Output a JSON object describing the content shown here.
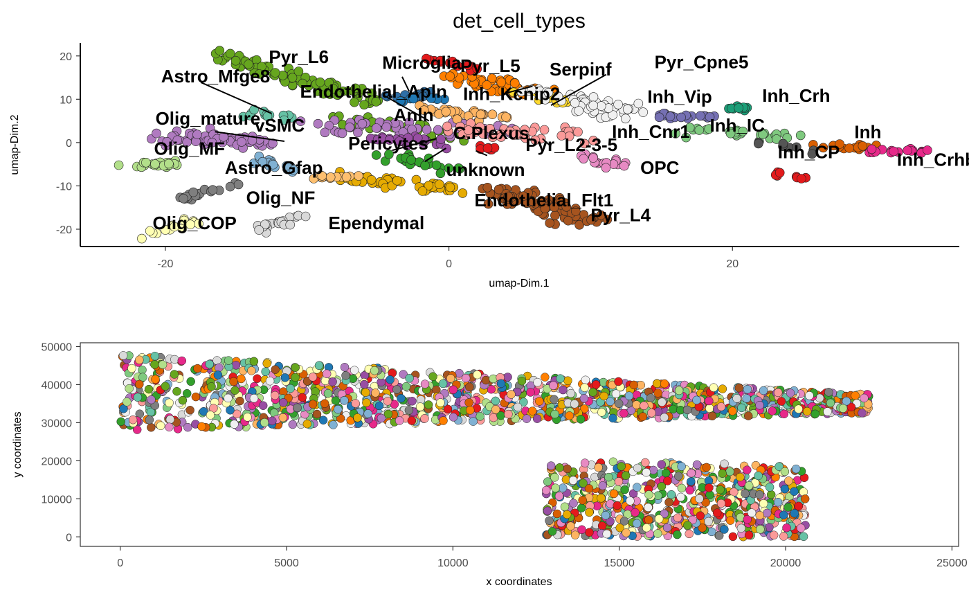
{
  "title": "det_cell_types",
  "colors": {
    "Pyr_L6": "#66a61e",
    "Astro_Mfge8": "#2f6fa6",
    "Endothelial_Apln": "#a6d854",
    "Olig_mature": "#b07ac0",
    "Olig_MF": "#b2df8a",
    "vSMC": "#66c2a5",
    "Astro_Gfap": "#80b1d3",
    "Olig_NF": "#7f7f7f",
    "Olig_COP": "#ffffb3",
    "Ependymal": "#d9d9d9",
    "Microglia": "#1f78b4",
    "Pyr_L5": "#ff7f00",
    "Serpinf": "#ffd92f",
    "Pyr_Cpne5": "#f0f0f0",
    "Inh_Kcnip2": "#fdb462",
    "Anln": "#984ea3",
    "C.Plexus": "#fb9a99",
    "Inh_Cnr1": "#e78ac3",
    "Pyr_L2-3-5": "#ef6f6f",
    "Pericytes": "#e6ab02",
    "unknown": "#33a02c",
    "Endothelial_Flt1": "#e6ab02",
    "Pyr_L4": "#a6541f",
    "OPC": "#e78ac3",
    "Inh_Vip": "#7570b3",
    "Inh_Crh": "#1b9e77",
    "Inh_IC": "#7fc97f",
    "Inh": "#d95f02",
    "Inh_CP": "#e31a1c",
    "Inh_Crhbp": "#e7298a",
    "pyr_red": "#e41a1c"
  },
  "chart_data": [
    {
      "type": "scatter",
      "title": "det_cell_types",
      "xlabel": "umap-Dim.1",
      "ylabel": "umap-Dim.2",
      "xlim": [
        -26,
        36
      ],
      "ylim": [
        -24,
        23
      ],
      "xticks": [
        -20,
        0,
        20
      ],
      "yticks": [
        -20,
        -10,
        0,
        10,
        20
      ],
      "grid": false,
      "clusters": [
        {
          "name": "Pyr_L6",
          "color": "#66a61e",
          "x": [
            -17,
            -5
          ],
          "y": [
            21,
            9
          ],
          "spread": 1.2,
          "n": 90
        },
        {
          "name": "Pyr_L6",
          "color": "#66a61e",
          "x": [
            -8,
            1
          ],
          "y": [
            6,
            1
          ],
          "spread": 1.2,
          "n": 30
        },
        {
          "name": "Astro_Mfge8",
          "color": "#2f6fa6",
          "x": [
            -5,
            -1
          ],
          "y": [
            11,
            11
          ],
          "spread": 0.8,
          "n": 15
        },
        {
          "name": "vSMC",
          "color": "#66c2a5",
          "x": [
            -14,
            -11
          ],
          "y": [
            7,
            6
          ],
          "spread": 0.7,
          "n": 14
        },
        {
          "name": "Olig_mature",
          "color": "#b07ac0",
          "x": [
            -20,
            -13
          ],
          "y": [
            1,
            0
          ],
          "spread": 1.2,
          "n": 60
        },
        {
          "name": "Olig_mature",
          "color": "#b07ac0",
          "x": [
            -9,
            4
          ],
          "y": [
            4,
            3
          ],
          "spread": 1.5,
          "n": 50
        },
        {
          "name": "Olig_MF",
          "color": "#b2df8a",
          "x": [
            -23,
            -19
          ],
          "y": [
            -5,
            -5
          ],
          "spread": 0.6,
          "n": 22
        },
        {
          "name": "Astro_Gfap",
          "color": "#80b1d3",
          "x": [
            -14,
            -11
          ],
          "y": [
            -3,
            -6
          ],
          "spread": 0.8,
          "n": 18
        },
        {
          "name": "Olig_NF",
          "color": "#7f7f7f",
          "x": [
            -19,
            -15
          ],
          "y": [
            -13,
            -10
          ],
          "spread": 0.6,
          "n": 22
        },
        {
          "name": "Olig_COP",
          "color": "#ffffb3",
          "x": [
            -22,
            -18
          ],
          "y": [
            -22,
            -18
          ],
          "spread": 0.6,
          "n": 16
        },
        {
          "name": "Ependymal",
          "color": "#d9d9d9",
          "x": [
            -13,
            -11
          ],
          "y": [
            -20,
            -17
          ],
          "spread": 0.8,
          "n": 20
        },
        {
          "name": "Microglia",
          "color": "#1f78b4",
          "x": [
            -4,
            0
          ],
          "y": [
            10,
            10
          ],
          "spread": 0.7,
          "n": 10
        },
        {
          "name": "Pyr_L5",
          "color": "#ff7f00",
          "x": [
            0,
            6
          ],
          "y": [
            15,
            12
          ],
          "spread": 1.3,
          "n": 45
        },
        {
          "name": "Pyr_L5",
          "color": "#e41a1c",
          "x": [
            -1,
            2
          ],
          "y": [
            19,
            17
          ],
          "spread": 0.6,
          "n": 14
        },
        {
          "name": "Serpinf",
          "color": "#ffd92f",
          "x": [
            5,
            8
          ],
          "y": [
            12,
            9
          ],
          "spread": 0.8,
          "n": 14
        },
        {
          "name": "Pyr_Cpne5",
          "color": "#f0f0f0",
          "x": [
            6,
            12
          ],
          "y": [
            12,
            7
          ],
          "spread": 1.5,
          "n": 60
        },
        {
          "name": "Inh_Kcnip2",
          "color": "#fdb462",
          "x": [
            -2,
            4
          ],
          "y": [
            8,
            6
          ],
          "spread": 1.0,
          "n": 30
        },
        {
          "name": "C.Plexus",
          "color": "#fb9a99",
          "x": [
            0,
            9
          ],
          "y": [
            3,
            2
          ],
          "spread": 1.3,
          "n": 45
        },
        {
          "name": "Pyr_L2-3-5",
          "color": "#e31a1c",
          "x": [
            2,
            4
          ],
          "y": [
            -1,
            -2
          ],
          "spread": 0.6,
          "n": 8
        },
        {
          "name": "Inh_Cnr1",
          "color": "#e78ac3",
          "x": [
            9,
            12
          ],
          "y": [
            -3,
            -5
          ],
          "spread": 0.8,
          "n": 18
        },
        {
          "name": "Pericytes",
          "color": "#e6ab02",
          "x": [
            -8,
            0
          ],
          "y": [
            -8,
            -11
          ],
          "spread": 1.0,
          "n": 50
        },
        {
          "name": "unknown",
          "color": "#33a02c",
          "x": [
            -4,
            0
          ],
          "y": [
            -3,
            -6
          ],
          "spread": 1.0,
          "n": 25
        },
        {
          "name": "Endothelial_Apln",
          "color": "#fdbf6f",
          "x": [
            -10,
            -6
          ],
          "y": [
            -8,
            -8
          ],
          "spread": 0.5,
          "n": 14
        },
        {
          "name": "Pyr_L4",
          "color": "#a6541f",
          "x": [
            3,
            10
          ],
          "y": [
            -11,
            -18
          ],
          "spread": 1.6,
          "n": 90
        },
        {
          "name": "Anln",
          "color": "#984ea3",
          "x": [
            -5,
            0
          ],
          "y": [
            1,
            0
          ],
          "spread": 1.0,
          "n": 25
        },
        {
          "name": "Inh_Vip",
          "color": "#7570b3",
          "x": [
            14,
            19
          ],
          "y": [
            6,
            6
          ],
          "spread": 0.6,
          "n": 20
        },
        {
          "name": "Inh_Crh",
          "color": "#1b9e77",
          "x": [
            19,
            21
          ],
          "y": [
            8,
            8
          ],
          "spread": 0.5,
          "n": 12
        },
        {
          "name": "Inh_IC",
          "color": "#7fc97f",
          "x": [
            17,
            25
          ],
          "y": [
            3,
            1
          ],
          "spread": 0.8,
          "n": 30
        },
        {
          "name": "Inh",
          "color": "#d95f02",
          "x": [
            26,
            30
          ],
          "y": [
            -1,
            -1
          ],
          "spread": 0.5,
          "n": 18
        },
        {
          "name": "Inh_CP",
          "color": "#e31a1c",
          "x": [
            23,
            25
          ],
          "y": [
            -7,
            -8
          ],
          "spread": 0.4,
          "n": 8
        },
        {
          "name": "Inh_Crhbp",
          "color": "#e7298a",
          "x": [
            29,
            34
          ],
          "y": [
            -2,
            -2
          ],
          "spread": 0.4,
          "n": 18
        },
        {
          "name": "Inh_IC",
          "color": "#555555",
          "x": [
            22,
            26
          ],
          "y": [
            0,
            -2
          ],
          "spread": 0.5,
          "n": 8
        }
      ],
      "labels": [
        {
          "text": "Pyr_L6",
          "x": -12.7,
          "y": 18.4
        },
        {
          "text": "Astro_Mfge8",
          "x": -20.3,
          "y": 13.9
        },
        {
          "text": "Endothelial_Apln",
          "x": -10.5,
          "y": 10.4
        },
        {
          "text": "Olig_mature",
          "x": -20.7,
          "y": 4.1
        },
        {
          "text": "vSMC",
          "x": -13.7,
          "y": 2.5
        },
        {
          "text": "Olig_MF",
          "x": -20.8,
          "y": -2.8
        },
        {
          "text": "Astro_Gfap",
          "x": -15.8,
          "y": -7.2
        },
        {
          "text": "Olig_NF",
          "x": -14.3,
          "y": -14.2
        },
        {
          "text": "Olig_COP",
          "x": -20.9,
          "y": -20.0
        },
        {
          "text": "Ependymal",
          "x": -8.5,
          "y": -20.0
        },
        {
          "text": "Microglia",
          "x": -4.7,
          "y": 17.0
        },
        {
          "text": "Pyr_L5",
          "x": 0.8,
          "y": 16.3
        },
        {
          "text": "Serpinf",
          "x": 7.1,
          "y": 15.5
        },
        {
          "text": "Pyr_Cpne5",
          "x": 14.5,
          "y": 17.2
        },
        {
          "text": "Inh_Kcnip2",
          "x": 1.0,
          "y": 9.8
        },
        {
          "text": "Anln",
          "x": -3.9,
          "y": 4.9
        },
        {
          "text": "C.Plexus",
          "x": 0.3,
          "y": 0.8
        },
        {
          "text": "Inh_Cnr1",
          "x": 11.5,
          "y": 1.1
        },
        {
          "text": "Pyr_L2-3-5",
          "x": 5.4,
          "y": -1.9
        },
        {
          "text": "Pericytes",
          "x": -7.1,
          "y": -1.6
        },
        {
          "text": "unknown",
          "x": -0.2,
          "y": -7.7
        },
        {
          "text": "Endothelial_Flt1",
          "x": 1.8,
          "y": -14.7
        },
        {
          "text": "Pyr_L4",
          "x": 10.0,
          "y": -18.2
        },
        {
          "text": "OPC",
          "x": 13.5,
          "y": -7.2
        },
        {
          "text": "Inh_Vip",
          "x": 14.0,
          "y": 9.2
        },
        {
          "text": "Inh_Crh",
          "x": 22.1,
          "y": 9.4
        },
        {
          "text": "Inh_IC",
          "x": 18.4,
          "y": 2.5
        },
        {
          "text": "Inh",
          "x": 28.6,
          "y": 1.0
        },
        {
          "text": "Inh_CP",
          "x": 23.2,
          "y": -3.6
        },
        {
          "text": "Inh_Crhbp",
          "x": 31.6,
          "y": -5.4
        }
      ],
      "leaders": [
        {
          "x1": -17.5,
          "y1": 13.9,
          "x2": -12.5,
          "y2": 6.7
        },
        {
          "x1": -16.5,
          "y1": 2.5,
          "x2": -11.6,
          "y2": 0.3
        },
        {
          "x1": -4.6,
          "y1": 10.9,
          "x2": -1.4,
          "y2": 5.0
        },
        {
          "x1": -3.3,
          "y1": 15.2,
          "x2": -2.8,
          "y2": 11.8
        },
        {
          "x1": 5.9,
          "y1": 13.0,
          "x2": 4.0,
          "y2": 11.4
        },
        {
          "x1": 11.1,
          "y1": 15.7,
          "x2": 7.2,
          "y2": 8.6
        },
        {
          "x1": -4.0,
          "y1": -1.8,
          "x2": -0.9,
          "y2": 0.9
        },
        {
          "x1": -1.7,
          "y1": -4.4,
          "x2": -0.2,
          "y2": -1.3
        },
        {
          "x1": 2.7,
          "y1": -3.0,
          "x2": 1.9,
          "y2": -1.9
        },
        {
          "x1": 7.2,
          "y1": -0.9,
          "x2": 6.6,
          "y2": 0.9
        }
      ]
    },
    {
      "type": "scatter",
      "title": "",
      "xlabel": "x coordinates",
      "ylabel": "y coordinates",
      "xlim": [
        -1200,
        25200
      ],
      "ylim": [
        -2500,
        51000
      ],
      "xticks": [
        0,
        5000,
        10000,
        15000,
        20000,
        25000
      ],
      "yticks": [
        0,
        10000,
        20000,
        30000,
        40000,
        50000
      ],
      "grid": false,
      "regions": [
        {
          "x": [
            0,
            22500
          ],
          "y_top": [
            48000,
            37500
          ],
          "y_bottom": [
            28000,
            32500
          ],
          "n": 1400
        },
        {
          "x": [
            12800,
            20600
          ],
          "y_top": [
            20000,
            19000
          ],
          "y_bottom": [
            0,
            0
          ],
          "n": 650
        }
      ],
      "palette": [
        "#66a61e",
        "#a6541f",
        "#ff7f00",
        "#e6ab02",
        "#b07ac0",
        "#984ea3",
        "#80b1d3",
        "#fb9a99",
        "#e78ac3",
        "#f0f0f0",
        "#ffffb3",
        "#d9d9d9",
        "#33a02c",
        "#fdb462",
        "#e41a1c",
        "#7fc97f",
        "#1f78b4",
        "#66c2a5",
        "#b2df8a",
        "#7f7f7f",
        "#e7298a",
        "#d95f02"
      ]
    }
  ]
}
